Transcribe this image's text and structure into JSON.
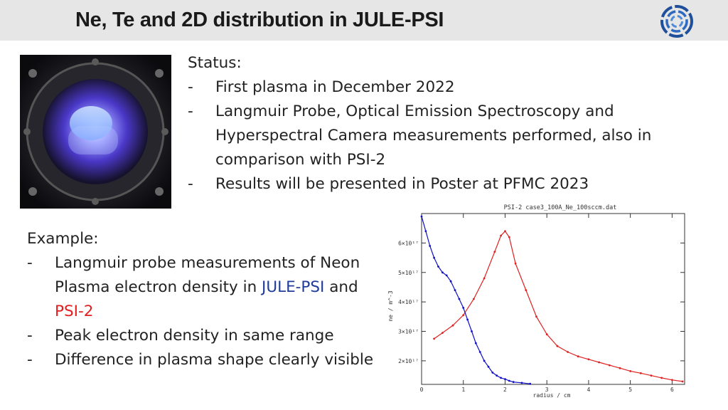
{
  "header": {
    "title": "Ne, Te and 2D distribution in JULE-PSI",
    "logo_icon": "institute-ring-logo-icon",
    "background_color": "#e6e6e6"
  },
  "photo": {
    "icon": "plasma-chamber-photo-icon"
  },
  "status": {
    "heading": "Status:",
    "items": [
      {
        "dash": "-",
        "text": "First plasma in December 2022"
      },
      {
        "dash": "-",
        "text": "Langmuir Probe, Optical Emission Spectroscopy and Hyperspectral Camera measurements performed, also in comparison with PSI-2"
      },
      {
        "dash": "-",
        "text": "Results will be presented in Poster at PFMC 2023"
      }
    ]
  },
  "example": {
    "heading": "Example:",
    "item1_dash": "-",
    "item1_prefix": "Langmuir probe measurements of Neon Plasma electron density in ",
    "item1_jule": "JULE-PSI",
    "item1_and": " and ",
    "item1_psi2": "PSI-2",
    "item2_dash": "-",
    "item2_text": "Peak electron density in same range",
    "item3_dash": "-",
    "item3_text": "Difference in plasma shape clearly visible",
    "colors": {
      "jule": "#1f3c9a",
      "psi2": "#e02020"
    }
  },
  "chart_data": {
    "type": "line",
    "title": "PSI-2    case3_100A_Ne_100sccm.dat",
    "xlabel": "radius / cm",
    "ylabel": "ne / m^-3",
    "xlim": [
      0,
      6.3
    ],
    "ylim": [
      1.2e+17,
      7e+17
    ],
    "xticks": [
      0,
      1,
      2,
      3,
      4,
      5,
      6
    ],
    "xtick_labels": [
      "0",
      "1",
      "2",
      "3",
      "4",
      "5",
      "6"
    ],
    "yticks": [
      2e+17,
      3e+17,
      4e+17,
      5e+17,
      6e+17
    ],
    "ytick_labels": [
      "2×10¹⁷",
      "3×10¹⁷",
      "4×10¹⁷",
      "5×10¹⁷",
      "6×10¹⁷"
    ],
    "grid": false,
    "series": [
      {
        "color": "#e02020",
        "x": [
          0.3,
          0.5,
          0.75,
          1.0,
          1.25,
          1.5,
          1.75,
          1.9,
          2.0,
          2.1,
          2.25,
          2.5,
          2.75,
          3.0,
          3.25,
          3.5,
          3.75,
          4.0,
          4.25,
          4.5,
          4.75,
          5.0,
          5.25,
          5.5,
          5.75,
          6.0,
          6.25
        ],
        "values": [
          2.75e+17,
          2.95e+17,
          3.2e+17,
          3.55e+17,
          4.1e+17,
          4.8e+17,
          5.7e+17,
          6.25e+17,
          6.4e+17,
          6.2e+17,
          5.3e+17,
          4.4e+17,
          3.5e+17,
          2.9e+17,
          2.5e+17,
          2.3e+17,
          2.15e+17,
          2.05e+17,
          1.95e+17,
          1.85e+17,
          1.75e+17,
          1.65e+17,
          1.58e+17,
          1.5e+17,
          1.42e+17,
          1.35e+17,
          1.3e+17
        ]
      },
      {
        "color": "#1010c8",
        "x": [
          0.0,
          0.1,
          0.2,
          0.3,
          0.4,
          0.5,
          0.6,
          0.7,
          0.8,
          0.9,
          1.0,
          1.1,
          1.2,
          1.3,
          1.4,
          1.5,
          1.6,
          1.7,
          1.8,
          1.9,
          2.0,
          2.1,
          2.2,
          2.4,
          2.6
        ],
        "values": [
          6.9e+17,
          6.4e+17,
          5.9e+17,
          5.5e+17,
          5.2e+17,
          5e+17,
          4.9e+17,
          4.7e+17,
          4.4e+17,
          4.1e+17,
          3.8e+17,
          3.4e+17,
          3e+17,
          2.6e+17,
          2.3e+17,
          2e+17,
          1.8e+17,
          1.6e+17,
          1.5e+17,
          1.42e+17,
          1.38e+17,
          1.32e+17,
          1.28e+17,
          1.25e+17,
          1.22e+17
        ]
      }
    ]
  }
}
